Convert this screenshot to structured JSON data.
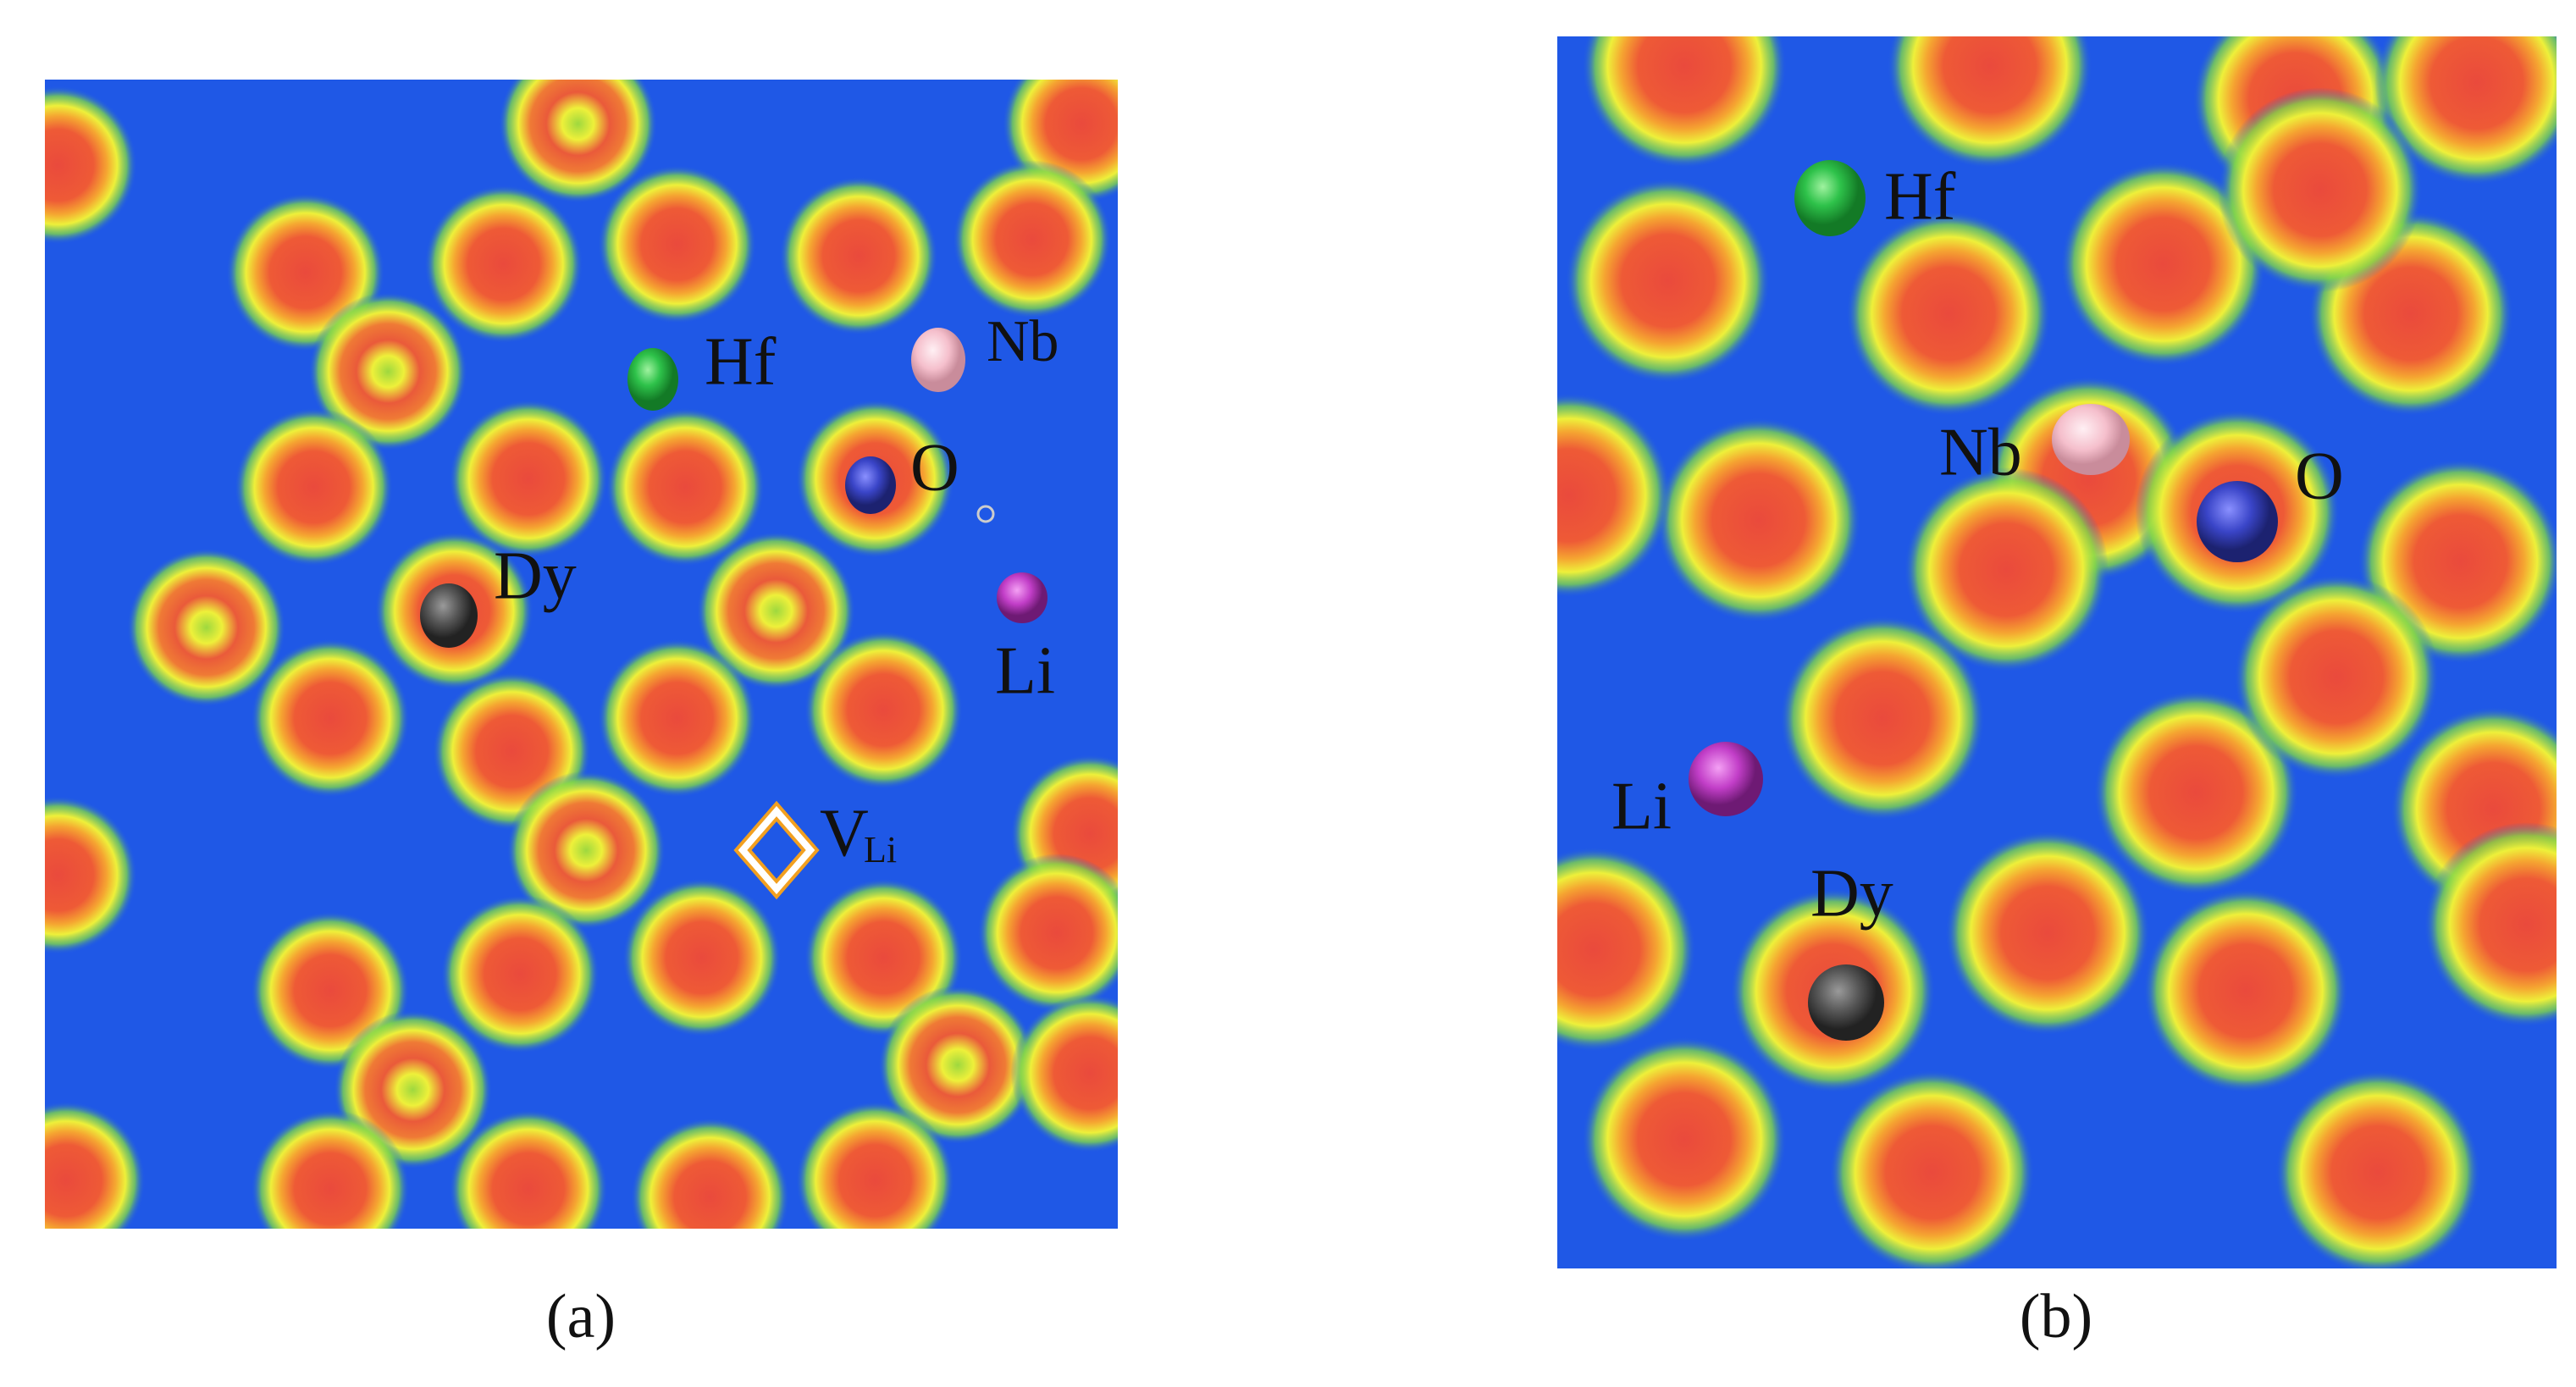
{
  "panels": [
    {
      "caption": "(a)",
      "labels": {
        "hf": "Hf",
        "nb": "Nb",
        "o": "O",
        "dy": "Dy",
        "li": "Li",
        "v": "V",
        "v_sub": "Li"
      }
    },
    {
      "caption": "(b)",
      "labels": {
        "hf": "Hf",
        "nb": "Nb",
        "o": "O",
        "dy": "Dy",
        "li": "Li"
      }
    }
  ]
}
